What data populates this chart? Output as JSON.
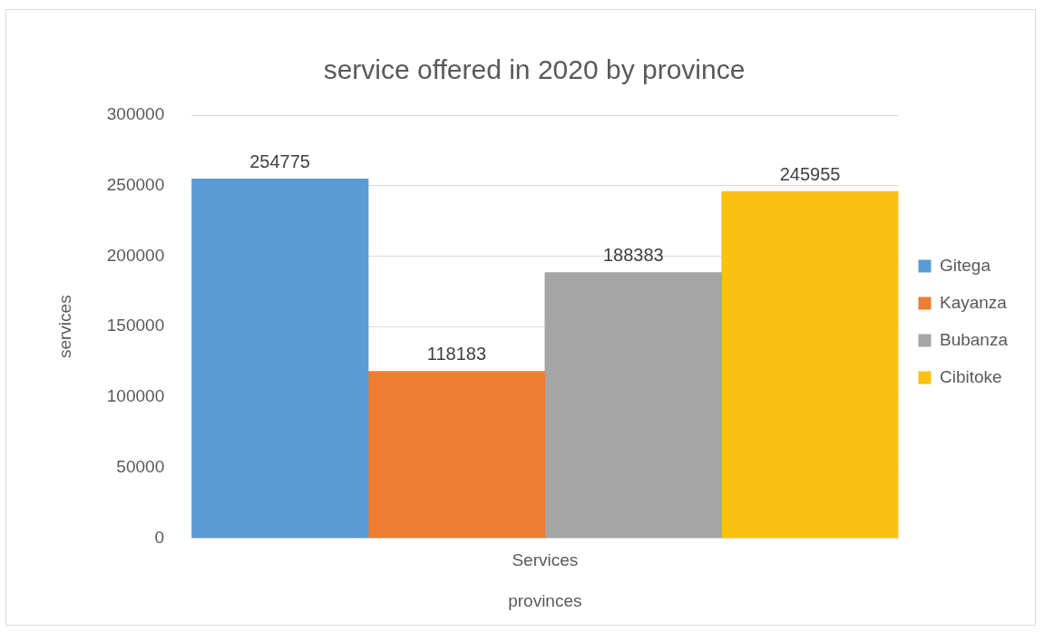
{
  "chart_data": {
    "type": "bar",
    "title": "service offered in 2020 by province",
    "xlabel": "provinces",
    "ylabel": "services",
    "categories": [
      "Services"
    ],
    "series": [
      {
        "name": "Gitega",
        "color": "#5b9bd5",
        "values": [
          254775
        ]
      },
      {
        "name": "Kayanza",
        "color": "#ed7d31",
        "values": [
          118183
        ]
      },
      {
        "name": "Bubanza",
        "color": "#a5a5a5",
        "values": [
          188383
        ]
      },
      {
        "name": "Cibitoke",
        "color": "#fbc012",
        "values": [
          245955
        ]
      }
    ],
    "ylim": [
      0,
      300000
    ],
    "yticks": [
      0,
      50000,
      100000,
      150000,
      200000,
      250000,
      300000
    ],
    "grid": "y",
    "legend": "right",
    "data_labels": true
  }
}
